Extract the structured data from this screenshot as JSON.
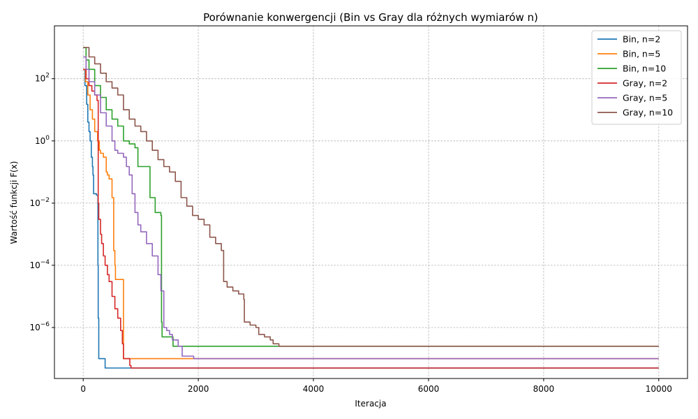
{
  "chart_data": {
    "type": "line",
    "title": "Porównanie konwergencji (Bin vs Gray dla różnych wymiarów n)",
    "xlabel": "Iteracja",
    "ylabel": "Wartość funkcji F(x)",
    "yscale": "log",
    "xlim": [
      -500,
      10500
    ],
    "ylim": [
      2.3e-08,
      5000
    ],
    "xticks": [
      0,
      2000,
      4000,
      6000,
      8000,
      10000
    ],
    "xtick_labels": [
      "0",
      "2000",
      "4000",
      "6000",
      "8000",
      "10000"
    ],
    "yticks": [
      1e-06,
      0.0001,
      0.01,
      1,
      100
    ],
    "ytick_labels": [
      {
        "base": "10",
        "exp": "−6"
      },
      {
        "base": "10",
        "exp": "−4"
      },
      {
        "base": "10",
        "exp": "−2"
      },
      {
        "base": "10",
        "exp": "0"
      },
      {
        "base": "10",
        "exp": "2"
      }
    ],
    "grid": true,
    "legend_position": "top-right",
    "series": [
      {
        "name": "Bin, n=2",
        "color": "#1f77b4",
        "points": [
          [
            0,
            200
          ],
          [
            30,
            60
          ],
          [
            60,
            15
          ],
          [
            80,
            4
          ],
          [
            100,
            2
          ],
          [
            120,
            1
          ],
          [
            140,
            0.3
          ],
          [
            160,
            0.15
          ],
          [
            170,
            0.08
          ],
          [
            180,
            0.02
          ],
          [
            200,
            0.02
          ],
          [
            230,
            0.018
          ],
          [
            240,
            0.018
          ],
          [
            255,
            0.0001
          ],
          [
            260,
            2e-06
          ],
          [
            270,
            1e-07
          ],
          [
            300,
            1e-07
          ],
          [
            370,
            1e-07
          ],
          [
            380,
            5e-08
          ],
          [
            10000,
            5e-08
          ]
        ]
      },
      {
        "name": "Bin, n=5",
        "color": "#ff7f0e",
        "points": [
          [
            0,
            200
          ],
          [
            40,
            80
          ],
          [
            80,
            30
          ],
          [
            120,
            10
          ],
          [
            160,
            5
          ],
          [
            200,
            2
          ],
          [
            250,
            1
          ],
          [
            280,
            0.5
          ],
          [
            300,
            0.4
          ],
          [
            350,
            0.3
          ],
          [
            400,
            0.1
          ],
          [
            420,
            0.08
          ],
          [
            450,
            0.06
          ],
          [
            500,
            0.015
          ],
          [
            520,
            0.015
          ],
          [
            530,
            0.0003
          ],
          [
            540,
            0.0003
          ],
          [
            550,
            0.0001
          ],
          [
            560,
            3.5e-05
          ],
          [
            680,
            3.5e-05
          ],
          [
            700,
            1e-07
          ],
          [
            1000,
            1e-07
          ],
          [
            10000,
            1e-07
          ]
        ]
      },
      {
        "name": "Bin, n=10",
        "color": "#2ca02c",
        "points": [
          [
            0,
            1000
          ],
          [
            50,
            400
          ],
          [
            100,
            200
          ],
          [
            200,
            60
          ],
          [
            300,
            25
          ],
          [
            400,
            10
          ],
          [
            500,
            5
          ],
          [
            600,
            3
          ],
          [
            700,
            1.5
          ],
          [
            700,
            1
          ],
          [
            800,
            0.8
          ],
          [
            900,
            0.6
          ],
          [
            950,
            0.15
          ],
          [
            1150,
            0.15
          ],
          [
            1160,
            0.015
          ],
          [
            1240,
            0.015
          ],
          [
            1250,
            0.005
          ],
          [
            1350,
            0.004
          ],
          [
            1360,
            1.5e-06
          ],
          [
            1370,
            5e-07
          ],
          [
            1550,
            5e-07
          ],
          [
            1560,
            2.5e-07
          ],
          [
            2200,
            2.5e-07
          ],
          [
            2220,
            2.5e-07
          ],
          [
            10000,
            2.5e-07
          ]
        ]
      },
      {
        "name": "Gray, n=2",
        "color": "#d62728",
        "points": [
          [
            0,
            200
          ],
          [
            50,
            100
          ],
          [
            100,
            60
          ],
          [
            150,
            40
          ],
          [
            200,
            30
          ],
          [
            240,
            20
          ],
          [
            260,
            0.01
          ],
          [
            270,
            0.003
          ],
          [
            300,
            0.001
          ],
          [
            320,
            0.0005
          ],
          [
            350,
            0.0002
          ],
          [
            380,
            0.0001
          ],
          [
            420,
            5e-05
          ],
          [
            450,
            3e-05
          ],
          [
            500,
            1e-05
          ],
          [
            550,
            4e-06
          ],
          [
            600,
            2e-06
          ],
          [
            650,
            8e-07
          ],
          [
            680,
            3e-07
          ],
          [
            700,
            1e-07
          ],
          [
            780,
            1e-07
          ],
          [
            810,
            6e-08
          ],
          [
            830,
            5e-08
          ],
          [
            840,
            5e-08
          ],
          [
            10000,
            5e-08
          ]
        ]
      },
      {
        "name": "Gray, n=5",
        "color": "#9467bd",
        "points": [
          [
            0,
            500
          ],
          [
            50,
            200
          ],
          [
            100,
            80
          ],
          [
            200,
            30
          ],
          [
            300,
            8
          ],
          [
            400,
            3
          ],
          [
            500,
            1
          ],
          [
            550,
            0.5
          ],
          [
            600,
            0.4
          ],
          [
            700,
            0.3
          ],
          [
            750,
            0.15
          ],
          [
            800,
            0.08
          ],
          [
            850,
            0.02
          ],
          [
            900,
            0.005
          ],
          [
            950,
            0.002
          ],
          [
            1000,
            0.0012
          ],
          [
            1100,
            0.0005
          ],
          [
            1200,
            0.0002
          ],
          [
            1300,
            5e-05
          ],
          [
            1350,
            1.5e-05
          ],
          [
            1400,
            1e-06
          ],
          [
            1450,
            8e-07
          ],
          [
            1500,
            6e-07
          ],
          [
            1550,
            4e-07
          ],
          [
            1650,
            2.5e-07
          ],
          [
            1700,
            2.5e-07
          ],
          [
            1720,
            1.2e-07
          ],
          [
            1900,
            1.2e-07
          ],
          [
            1920,
            1e-07
          ],
          [
            10000,
            1e-07
          ]
        ]
      },
      {
        "name": "Gray, n=10",
        "color": "#8c564b",
        "points": [
          [
            0,
            1000
          ],
          [
            100,
            500
          ],
          [
            200,
            300
          ],
          [
            300,
            150
          ],
          [
            400,
            80
          ],
          [
            500,
            50
          ],
          [
            600,
            30
          ],
          [
            700,
            10
          ],
          [
            800,
            5
          ],
          [
            900,
            3
          ],
          [
            1000,
            2
          ],
          [
            1100,
            1
          ],
          [
            1200,
            0.5
          ],
          [
            1300,
            0.25
          ],
          [
            1400,
            0.15
          ],
          [
            1500,
            0.1
          ],
          [
            1600,
            0.05
          ],
          [
            1700,
            0.015
          ],
          [
            1800,
            0.008
          ],
          [
            1900,
            0.004
          ],
          [
            2000,
            0.003
          ],
          [
            2100,
            0.002
          ],
          [
            2200,
            0.0008
          ],
          [
            2300,
            0.0005
          ],
          [
            2400,
            0.0003
          ],
          [
            2440,
            3e-05
          ],
          [
            2500,
            2e-05
          ],
          [
            2600,
            1.5e-05
          ],
          [
            2700,
            1.2e-05
          ],
          [
            2790,
            8e-06
          ],
          [
            2800,
            1.5e-06
          ],
          [
            2900,
            1.2e-06
          ],
          [
            3000,
            1e-06
          ],
          [
            3050,
            6e-07
          ],
          [
            3150,
            5e-07
          ],
          [
            3250,
            4e-07
          ],
          [
            3300,
            3e-07
          ],
          [
            3400,
            2.5e-07
          ],
          [
            3600,
            2.5e-07
          ],
          [
            10000,
            2.5e-07
          ]
        ]
      }
    ]
  }
}
